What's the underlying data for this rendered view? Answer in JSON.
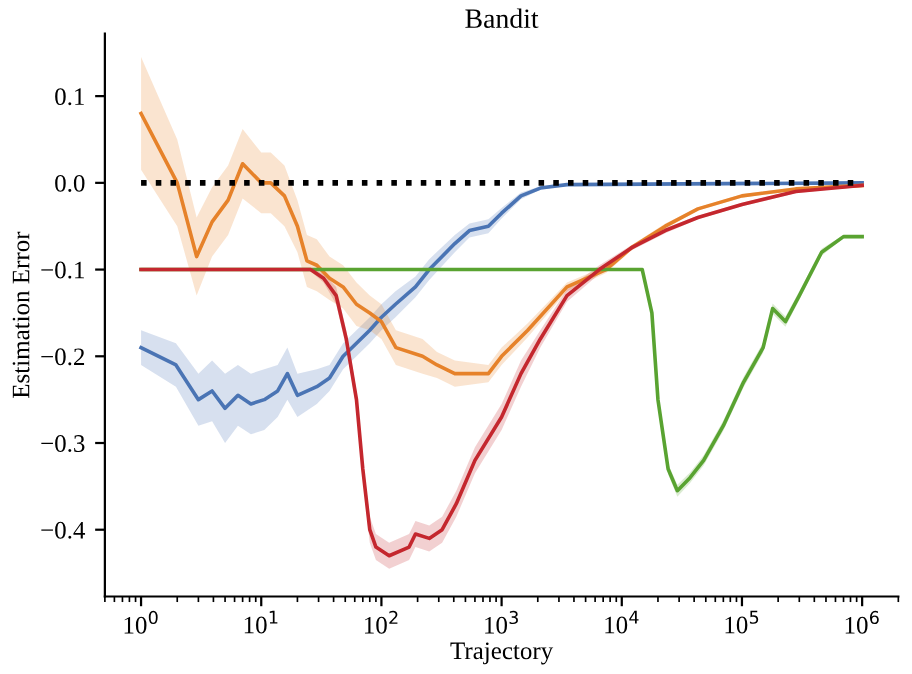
{
  "chart_data": {
    "type": "line",
    "title": "Bandit",
    "xlabel": "Trajectory",
    "ylabel": "Estimation Error",
    "log": "x",
    "grid": false,
    "legend": false,
    "marker": "none",
    "xlim": [
      0.5,
      2000000
    ],
    "ylim": [
      -0.477,
      0.172
    ],
    "xticks": [
      {
        "value": 1,
        "label": "10$^{0}$"
      },
      {
        "value": 10,
        "label": "10$^{1}$"
      },
      {
        "value": 100,
        "label": "10$^{2}$"
      },
      {
        "value": 1000,
        "label": "10$^{3}$"
      },
      {
        "value": 10000,
        "label": "10$^{4}$"
      },
      {
        "value": 100000,
        "label": "10$^{5}$"
      },
      {
        "value": 1000000,
        "label": "10$^{6}$"
      }
    ],
    "yticks": [
      {
        "value": -0.4,
        "label": "−0.4"
      },
      {
        "value": -0.3,
        "label": "−0.3"
      },
      {
        "value": -0.2,
        "label": "−0.2"
      },
      {
        "value": -0.1,
        "label": "−0.1"
      },
      {
        "value": 0.0,
        "label": "0.0"
      },
      {
        "value": 0.1,
        "label": "0.1"
      }
    ],
    "series": [
      {
        "color": "#4a74b4",
        "line_style": "solid",
        "x": [
          1,
          1.95,
          3,
          3.9,
          5,
          6.4,
          8.2,
          10.6,
          13.7,
          16.5,
          20,
          29,
          37,
          48,
          62,
          80,
          100,
          131,
          192,
          250,
          408,
          540,
          776,
          1000,
          1450,
          2100,
          3500,
          1000000
        ],
        "values": [
          -0.19,
          -0.21,
          -0.25,
          -0.24,
          -0.26,
          -0.245,
          -0.255,
          -0.25,
          -0.24,
          -0.22,
          -0.245,
          -0.235,
          -0.225,
          -0.2,
          -0.185,
          -0.17,
          -0.155,
          -0.14,
          -0.12,
          -0.1,
          -0.07,
          -0.055,
          -0.05,
          -0.035,
          -0.015,
          -0.006,
          -0.002,
          0.0
        ],
        "lower": [
          -0.21,
          -0.235,
          -0.28,
          -0.275,
          -0.3,
          -0.28,
          -0.29,
          -0.285,
          -0.27,
          -0.25,
          -0.27,
          -0.255,
          -0.24,
          -0.215,
          -0.2,
          -0.185,
          -0.17,
          -0.155,
          -0.132,
          -0.112,
          -0.08,
          -0.063,
          -0.058,
          -0.041,
          -0.019,
          -0.008,
          -0.003,
          -0.001
        ],
        "upper": [
          -0.17,
          -0.185,
          -0.22,
          -0.205,
          -0.22,
          -0.21,
          -0.22,
          -0.215,
          -0.21,
          -0.19,
          -0.22,
          -0.215,
          -0.21,
          -0.185,
          -0.17,
          -0.155,
          -0.14,
          -0.125,
          -0.108,
          -0.088,
          -0.06,
          -0.047,
          -0.042,
          -0.029,
          -0.011,
          -0.004,
          -0.001,
          0.001
        ]
      },
      {
        "color": "#e6822a",
        "line_style": "solid",
        "x": [
          1,
          2,
          2.9,
          3.9,
          5.3,
          7,
          10,
          12,
          15.6,
          20,
          24,
          29,
          37,
          48,
          62,
          80,
          100,
          132,
          220,
          290,
          408,
          776,
          1000,
          1650,
          3500,
          7400,
          12000,
          23000,
          43000,
          100000,
          280000,
          1000000
        ],
        "values": [
          0.08,
          0.0,
          -0.085,
          -0.045,
          -0.02,
          0.022,
          0.0,
          0.0,
          -0.015,
          -0.05,
          -0.09,
          -0.095,
          -0.11,
          -0.12,
          -0.14,
          -0.15,
          -0.16,
          -0.19,
          -0.2,
          -0.21,
          -0.22,
          -0.22,
          -0.2,
          -0.17,
          -0.12,
          -0.1,
          -0.075,
          -0.05,
          -0.03,
          -0.015,
          -0.007,
          -0.003
        ],
        "lower": [
          0.015,
          -0.05,
          -0.13,
          -0.085,
          -0.06,
          -0.018,
          -0.035,
          -0.035,
          -0.05,
          -0.08,
          -0.12,
          -0.125,
          -0.135,
          -0.145,
          -0.165,
          -0.17,
          -0.18,
          -0.21,
          -0.22,
          -0.225,
          -0.235,
          -0.23,
          -0.21,
          -0.178,
          -0.125,
          -0.104,
          -0.078,
          -0.053,
          -0.032,
          -0.017,
          -0.009,
          -0.005
        ],
        "upper": [
          0.145,
          0.05,
          -0.04,
          -0.005,
          0.02,
          0.062,
          0.035,
          0.035,
          0.02,
          -0.02,
          -0.06,
          -0.065,
          -0.085,
          -0.095,
          -0.115,
          -0.13,
          -0.14,
          -0.17,
          -0.18,
          -0.195,
          -0.205,
          -0.21,
          -0.19,
          -0.162,
          -0.115,
          -0.096,
          -0.072,
          -0.047,
          -0.028,
          -0.013,
          -0.005,
          -0.001
        ]
      },
      {
        "color": "#59a331",
        "line_style": "solid",
        "x": [
          1,
          14800,
          17800,
          20000,
          24300,
          29000,
          37000,
          48000,
          70000,
          103000,
          150000,
          180000,
          230000,
          300000,
          460000,
          700000,
          1000000
        ],
        "values": [
          -0.1,
          -0.1,
          -0.15,
          -0.25,
          -0.33,
          -0.355,
          -0.34,
          -0.32,
          -0.28,
          -0.23,
          -0.19,
          -0.145,
          -0.16,
          -0.13,
          -0.08,
          -0.062,
          -0.062
        ],
        "lower": [
          -0.101,
          -0.101,
          -0.156,
          -0.256,
          -0.336,
          -0.362,
          -0.346,
          -0.326,
          -0.286,
          -0.236,
          -0.196,
          -0.151,
          -0.166,
          -0.135,
          -0.084,
          -0.064,
          -0.064
        ],
        "upper": [
          -0.099,
          -0.099,
          -0.144,
          -0.244,
          -0.324,
          -0.348,
          -0.334,
          -0.314,
          -0.274,
          -0.224,
          -0.184,
          -0.139,
          -0.154,
          -0.125,
          -0.076,
          -0.06,
          -0.06
        ]
      },
      {
        "color": "#c4272e",
        "line_style": "solid",
        "x": [
          1,
          25.7,
          33,
          42,
          51,
          62,
          70,
          80,
          90,
          116,
          170,
          192,
          250,
          320,
          420,
          600,
          1000,
          1450,
          2100,
          3500,
          6500,
          12000,
          23000,
          43000,
          100000,
          280000,
          1000000
        ],
        "values": [
          -0.1,
          -0.1,
          -0.11,
          -0.13,
          -0.18,
          -0.25,
          -0.33,
          -0.4,
          -0.42,
          -0.43,
          -0.42,
          -0.405,
          -0.41,
          -0.4,
          -0.37,
          -0.32,
          -0.27,
          -0.22,
          -0.18,
          -0.13,
          -0.1,
          -0.075,
          -0.055,
          -0.04,
          -0.025,
          -0.01,
          -0.003
        ],
        "lower": [
          -0.102,
          -0.102,
          -0.115,
          -0.14,
          -0.19,
          -0.26,
          -0.34,
          -0.415,
          -0.435,
          -0.445,
          -0.435,
          -0.42,
          -0.425,
          -0.415,
          -0.385,
          -0.335,
          -0.285,
          -0.235,
          -0.19,
          -0.137,
          -0.105,
          -0.078,
          -0.058,
          -0.042,
          -0.027,
          -0.012,
          -0.004
        ],
        "upper": [
          -0.098,
          -0.098,
          -0.105,
          -0.12,
          -0.17,
          -0.24,
          -0.32,
          -0.385,
          -0.405,
          -0.415,
          -0.405,
          -0.39,
          -0.395,
          -0.385,
          -0.355,
          -0.305,
          -0.255,
          -0.205,
          -0.17,
          -0.123,
          -0.095,
          -0.072,
          -0.052,
          -0.038,
          -0.023,
          -0.008,
          -0.002
        ]
      },
      {
        "color": "#000000",
        "line_style": "dotted",
        "x": [
          1,
          1000000
        ],
        "values": [
          0.0,
          0.0
        ]
      }
    ]
  }
}
